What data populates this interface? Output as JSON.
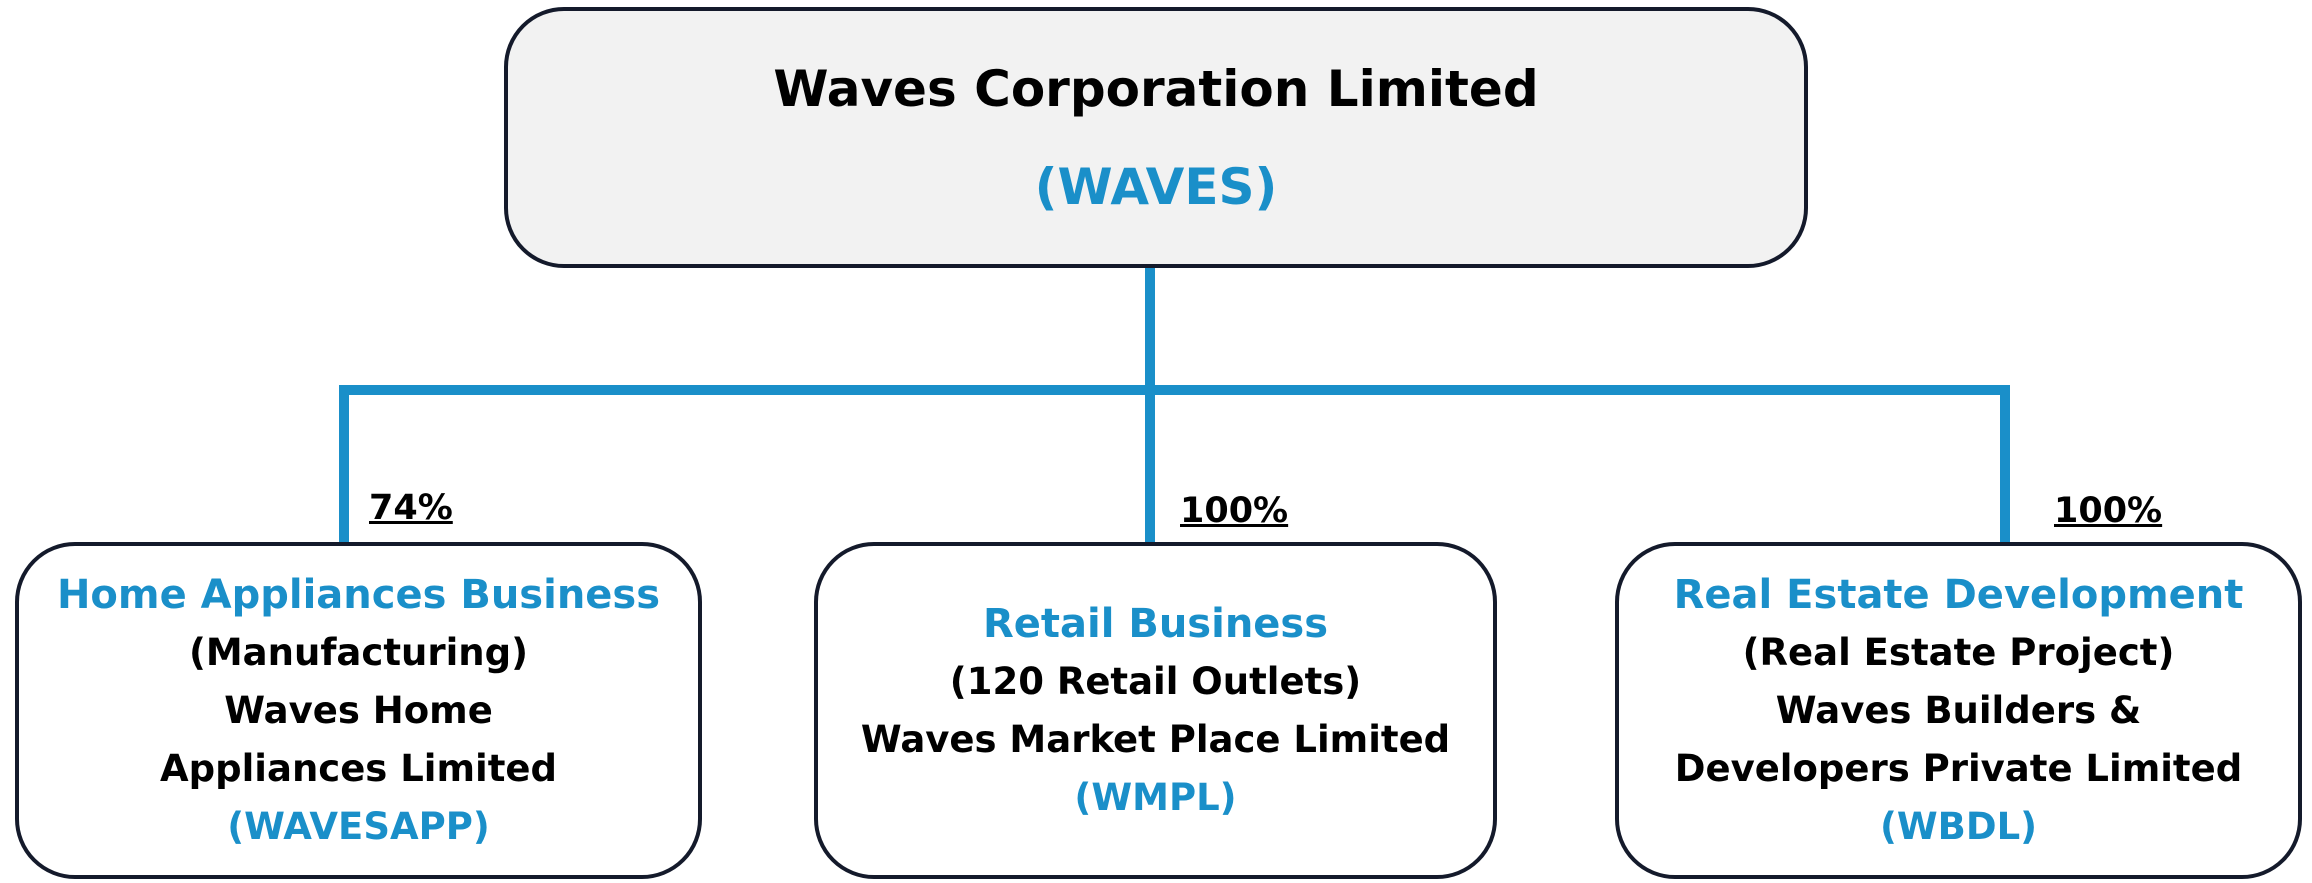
{
  "root": {
    "title": "Waves Corporation Limited",
    "code": "(WAVES)"
  },
  "nodes": [
    {
      "ownership": "74%",
      "name": "Home Appliances Business",
      "description": "(Manufacturing)",
      "company": "Waves Home Appliances Limited",
      "code": "(WAVESAPP)"
    },
    {
      "ownership": "100%",
      "name": "Retail Business",
      "description": "(120 Retail Outlets)",
      "company": "Waves Market Place Limited",
      "code": "(WMPL)"
    },
    {
      "ownership": "100%",
      "name": "Real Estate Development",
      "description": "(Real Estate Project)",
      "company": "Waves Builders & Developers Private Limited",
      "code": "(WBDL)"
    }
  ]
}
